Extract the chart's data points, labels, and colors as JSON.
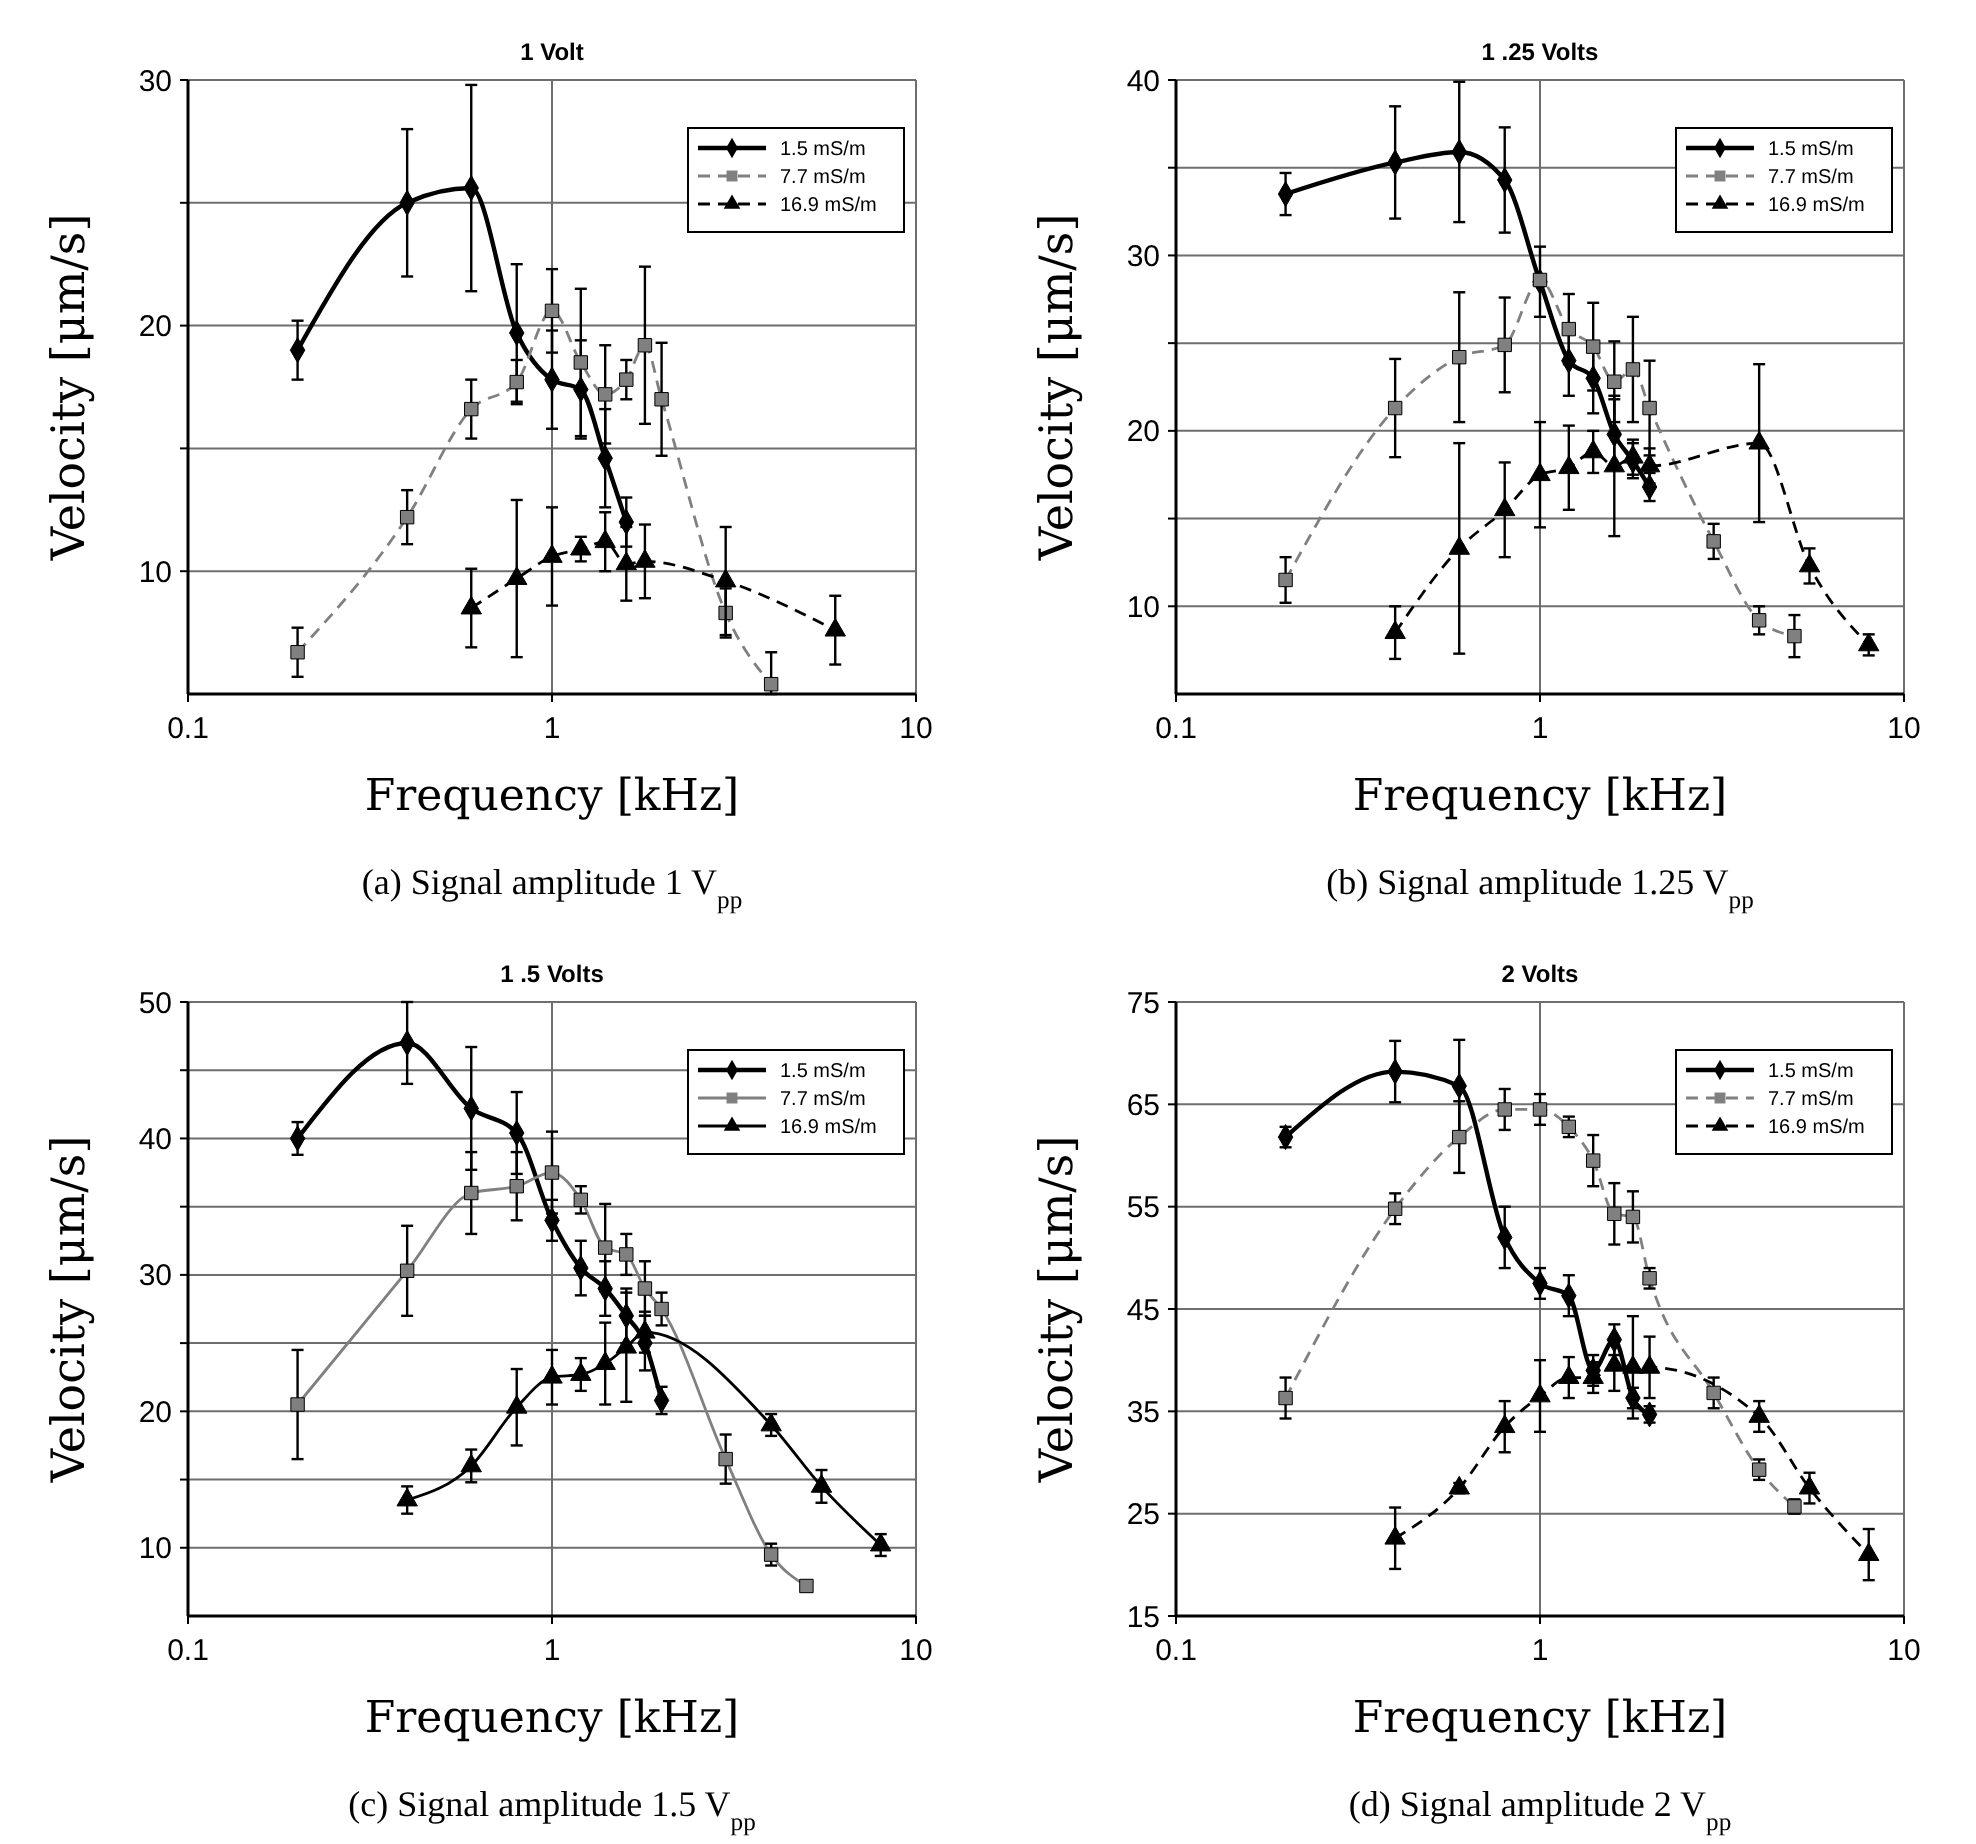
{
  "chart_data": [
    {
      "type": "line",
      "title": "1 Volt",
      "xlabel": "Frequency [kHz]",
      "ylabel": "Velocity [μm/s]",
      "annotations": [
        "(a) Signal amplitude 1 V$_{pp}$"
      ],
      "log": "x",
      "xlim": [
        0.1,
        10
      ],
      "xticks": [
        0.1,
        1,
        10
      ],
      "ylim": [
        5,
        30
      ],
      "yticks": [
        10,
        {
          "value": 15,
          "label": null
        },
        20,
        {
          "value": 25,
          "label": null
        },
        30
      ],
      "grid": true,
      "legend": "top right",
      "series": [
        {
          "name": "1.5 mS/m",
          "color": "#000000",
          "marker": "diamond",
          "line_style": "solid",
          "x": [
            0.2,
            0.4,
            0.6,
            0.8,
            1,
            1.2,
            1.4,
            1.6
          ],
          "values": [
            19,
            25,
            25.6,
            19.7,
            17.8,
            17.4,
            14.6,
            12
          ],
          "errors": [
            1.2,
            3,
            4.2,
            2.8,
            2,
            2,
            2,
            1
          ]
        },
        {
          "name": "7.7 mS/m",
          "color": "#808080",
          "marker": "square",
          "line_style": "dashed",
          "x": [
            0.2,
            0.4,
            0.6,
            0.8,
            1,
            1.2,
            1.4,
            1.6,
            1.8,
            2,
            3,
            4
          ],
          "values": [
            6.7,
            12.2,
            16.6,
            17.7,
            20.6,
            18.5,
            17.2,
            17.8,
            19.2,
            17,
            8.3,
            5.4
          ],
          "errors": [
            1,
            1.1,
            1.2,
            0.9,
            1.7,
            3,
            2,
            0.8,
            3.2,
            2.3,
            1,
            [
              5,
              6.7
            ]
          ]
        },
        {
          "name": "16.9 mS/m",
          "color": "#000000",
          "marker": "triangle",
          "line_style": "dashed",
          "x": [
            0.6,
            0.8,
            1,
            1.2,
            1.4,
            1.6,
            1.8,
            3,
            6
          ],
          "values": [
            8.5,
            9.7,
            10.6,
            10.9,
            11.2,
            10.3,
            10.4,
            9.6,
            7.6
          ],
          "errors": [
            1.6,
            3.2,
            2,
            0.5,
            1.2,
            1.5,
            1.5,
            2.2,
            1.4
          ]
        }
      ]
    },
    {
      "type": "line",
      "title": "1 .25 Volts",
      "xlabel": "Frequency [kHz]",
      "ylabel": "Velocity [μm/s]",
      "annotations": [
        "(b) Signal amplitude 1.25 V$_{pp}$"
      ],
      "log": "x",
      "xlim": [
        0.1,
        10
      ],
      "xticks": [
        0.1,
        1,
        10
      ],
      "ylim": [
        5,
        40
      ],
      "yticks": [
        10,
        {
          "value": 15,
          "label": null
        },
        20,
        {
          "value": 25,
          "label": null
        },
        30,
        {
          "value": 35,
          "label": null
        },
        40
      ],
      "grid": true,
      "legend": "top right",
      "series": [
        {
          "name": "1.5 mS/m",
          "color": "#000000",
          "marker": "diamond",
          "line_style": "solid",
          "x": [
            0.2,
            0.4,
            0.6,
            0.8,
            1,
            1.2,
            1.4,
            1.6,
            1.8,
            2
          ],
          "values": [
            33.5,
            35.3,
            35.9,
            34.3,
            28.5,
            24,
            23,
            19.8,
            18.3,
            16.8
          ],
          "errors": [
            1.2,
            3.2,
            4,
            3,
            2,
            2,
            2,
            2,
            1,
            0.8
          ]
        },
        {
          "name": "7.7 mS/m",
          "color": "#808080",
          "marker": "square",
          "line_style": "dashed",
          "x": [
            0.2,
            0.4,
            0.6,
            0.8,
            1,
            1.2,
            1.4,
            1.6,
            1.8,
            2,
            3,
            4,
            5
          ],
          "values": [
            11.5,
            21.3,
            24.2,
            24.9,
            28.6,
            25.8,
            24.8,
            22.8,
            23.5,
            21.3,
            13.7,
            9.2,
            8.3
          ],
          "errors": [
            1.3,
            2.8,
            3.7,
            2.7,
            null,
            2,
            2.5,
            2.3,
            3,
            2.7,
            1,
            0.8,
            1.2
          ]
        },
        {
          "name": "16.9 mS/m",
          "color": "#000000",
          "marker": "triangle",
          "line_style": "dashed",
          "x": [
            0.4,
            0.6,
            0.8,
            1,
            1.2,
            1.4,
            1.6,
            1.8,
            2,
            4,
            5.5,
            8
          ],
          "values": [
            8.5,
            13.3,
            15.5,
            17.5,
            17.9,
            18.8,
            18,
            18.5,
            18,
            19.3,
            12.3,
            7.8
          ],
          "errors": [
            1.5,
            6,
            2.7,
            3,
            2.4,
            1.2,
            4,
            1,
            1,
            4.5,
            1,
            0.6
          ]
        }
      ]
    },
    {
      "type": "line",
      "title": "1 .5 Volts",
      "xlabel": "Frequency [kHz]",
      "ylabel": "Velocity [μm/s]",
      "annotations": [
        "(c) Signal amplitude 1.5 V$_{pp}$"
      ],
      "log": "x",
      "xlim": [
        0.1,
        10
      ],
      "xticks": [
        0.1,
        1,
        10
      ],
      "ylim": [
        5,
        50
      ],
      "yticks": [
        10,
        {
          "value": 15,
          "label": null
        },
        20,
        {
          "value": 25,
          "label": null
        },
        30,
        {
          "value": 35,
          "label": null
        },
        40,
        {
          "value": 45,
          "label": null
        },
        50
      ],
      "grid": true,
      "legend": "top right",
      "series": [
        {
          "name": "1.5 mS/m",
          "color": "#000000",
          "marker": "diamond",
          "line_style": "solid",
          "x": [
            0.2,
            0.4,
            0.6,
            0.8,
            1,
            1.2,
            1.4,
            1.6,
            1.8,
            2
          ],
          "values": [
            40,
            47,
            42.2,
            40.4,
            34,
            30.5,
            29,
            27,
            25,
            20.8
          ],
          "errors": [
            1.2,
            3,
            4.5,
            3,
            1.5,
            2,
            2,
            2,
            2,
            1
          ]
        },
        {
          "name": "7.7 mS/m",
          "color": "#808080",
          "marker": "square",
          "line_style": "solid",
          "x": [
            0.2,
            0.4,
            0.6,
            0.8,
            1,
            1.2,
            1.4,
            1.6,
            1.8,
            2,
            3,
            4,
            5
          ],
          "values": [
            20.5,
            30.3,
            36,
            36.5,
            37.5,
            35.5,
            32,
            31.5,
            29,
            27.5,
            16.5,
            9.5,
            7.2
          ],
          "errors": [
            4,
            3.3,
            3,
            2.5,
            3,
            1,
            3.2,
            1.5,
            2,
            1.2,
            1.8,
            0.8,
            0.4
          ]
        },
        {
          "name": "16.9 mS/m",
          "color": "#000000",
          "marker": "triangle",
          "line_style": "solid",
          "x": [
            0.4,
            0.6,
            0.8,
            1,
            1.2,
            1.4,
            1.6,
            1.8,
            4,
            5.5,
            8
          ],
          "values": [
            13.5,
            16,
            20.3,
            22.5,
            22.7,
            23.5,
            24.7,
            25.8,
            19,
            14.5,
            10.2
          ],
          "errors": [
            1,
            1.2,
            2.8,
            2,
            1.2,
            3,
            4,
            1.5,
            0.8,
            1.2,
            0.8
          ]
        }
      ]
    },
    {
      "type": "line",
      "title": "2 Volts",
      "xlabel": "Frequency [kHz]",
      "ylabel": "Velocity [μm/s]",
      "annotations": [
        "(d) Signal amplitude 2 V$_{pp}$"
      ],
      "log": "x",
      "xlim": [
        0.1,
        10
      ],
      "xticks": [
        0.1,
        1,
        10
      ],
      "ylim": [
        15,
        75
      ],
      "yticks": [
        15,
        25,
        35,
        45,
        55,
        65,
        75
      ],
      "grid": true,
      "legend": "top right",
      "series": [
        {
          "name": "1.5 mS/m",
          "color": "#000000",
          "marker": "diamond",
          "line_style": "solid",
          "x": [
            0.2,
            0.4,
            0.6,
            0.8,
            1,
            1.2,
            1.4,
            1.6,
            1.8,
            2
          ],
          "values": [
            61.8,
            68.2,
            66.8,
            52,
            47.5,
            46.3,
            39,
            42,
            36.3,
            34.7
          ],
          "errors": [
            1,
            3,
            4.5,
            3,
            1.5,
            2,
            1.5,
            1.5,
            1,
            0.8
          ]
        },
        {
          "name": "7.7 mS/m",
          "color": "#808080",
          "marker": "square",
          "line_style": "dashed",
          "x": [
            0.2,
            0.4,
            0.6,
            0.8,
            1,
            1.2,
            1.4,
            1.6,
            1.8,
            2,
            3,
            4,
            5
          ],
          "values": [
            36.3,
            54.8,
            61.8,
            64.5,
            64.5,
            62.8,
            59.5,
            54.3,
            54,
            48,
            36.8,
            29.3,
            25.7
          ],
          "errors": [
            2,
            1.5,
            3.5,
            2,
            1.5,
            1,
            2.5,
            3,
            2.5,
            1,
            1.5,
            1,
            0.7
          ]
        },
        {
          "name": "16.9 mS/m",
          "color": "#000000",
          "marker": "triangle",
          "line_style": "dashed",
          "x": [
            0.4,
            0.6,
            0.8,
            1,
            1.2,
            1.4,
            1.6,
            1.8,
            2,
            4,
            5.5,
            8
          ],
          "values": [
            22.6,
            27.5,
            33.5,
            36.5,
            38.3,
            38.3,
            39.5,
            39.3,
            39.3,
            34.5,
            27.5,
            21
          ],
          "errors": [
            3,
            0.5,
            2.5,
            3.5,
            2,
            1.5,
            2.5,
            5,
            3,
            1.5,
            1.5,
            2.5
          ]
        }
      ]
    }
  ]
}
